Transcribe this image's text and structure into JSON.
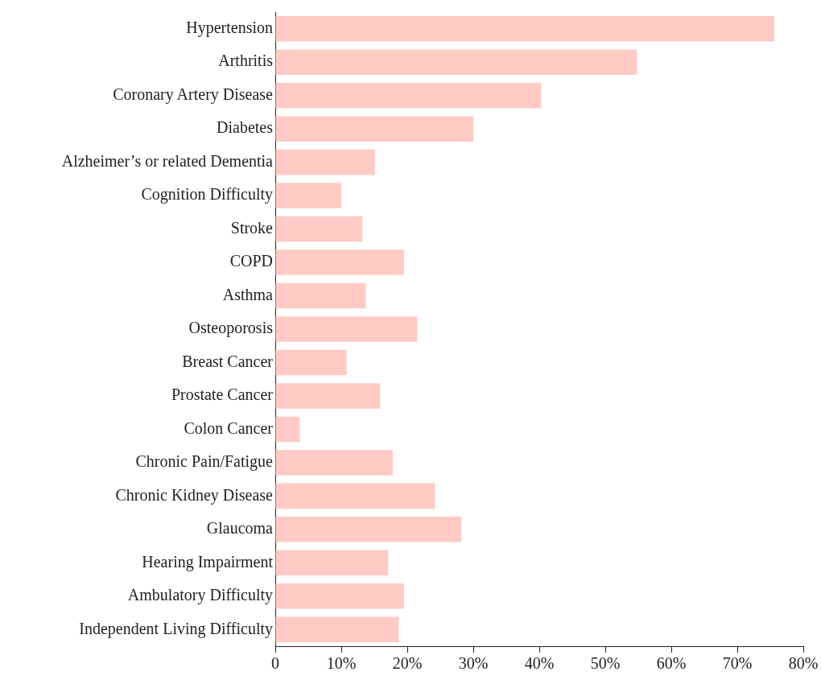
{
  "chart_data": {
    "type": "bar",
    "orientation": "horizontal",
    "categories": [
      "Hypertension",
      "Arthritis",
      "Coronary Artery Disease",
      "Diabetes",
      "Alzheimer’s or related Dementia",
      "Cognition Difficulty",
      "Stroke",
      "COPD",
      "Asthma",
      "Osteoporosis",
      "Breast Cancer",
      "Prostate Cancer",
      "Colon Cancer",
      "Chronic Pain/Fatigue",
      "Chronic Kidney Disease",
      "Glaucoma",
      "Hearing Impairment",
      "Ambulatory Difficulty",
      "Independent Living Difficulty"
    ],
    "values": [
      75.6,
      54.8,
      40.3,
      30.0,
      15.1,
      10.0,
      13.2,
      19.5,
      13.7,
      21.5,
      10.8,
      15.9,
      3.7,
      17.8,
      24.2,
      28.2,
      17.1,
      19.5,
      18.7
    ],
    "color": "#ffcbc4",
    "xlim": [
      0,
      80
    ],
    "xticks": [
      0,
      {
        "value": 10,
        "label": "10%"
      },
      {
        "value": 20,
        "label": "20%"
      },
      {
        "value": 30,
        "label": "30%"
      },
      {
        "value": 40,
        "label": "40%"
      },
      {
        "value": 50,
        "label": "50%"
      },
      {
        "value": 60,
        "label": "60%"
      },
      {
        "value": 70,
        "label": "70%"
      },
      {
        "value": 80,
        "label": "80%"
      }
    ],
    "grid": false,
    "legend": false
  }
}
